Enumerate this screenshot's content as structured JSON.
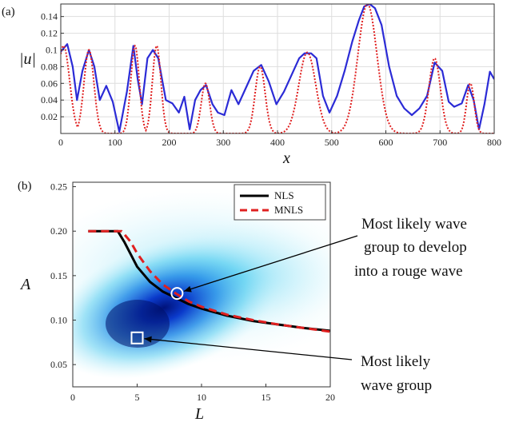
{
  "panel_a": {
    "label": "(a)",
    "chart_data": {
      "type": "line",
      "xlabel": "x",
      "ylabel": "|u|",
      "xlim": [
        0,
        800
      ],
      "ylim": [
        0,
        0.155
      ],
      "x_ticks": [
        0,
        100,
        200,
        300,
        400,
        500,
        600,
        700,
        800
      ],
      "y_ticks": [
        0.02,
        0.04,
        0.06,
        0.08,
        0.1,
        0.12,
        0.14
      ],
      "y_tick_labels": [
        "0.02",
        "0.04",
        "0.06",
        "0.08",
        "0.1",
        "0.12",
        "0.14"
      ],
      "grid": true,
      "series": [
        {
          "color": "#2b2bd6",
          "style": "solid",
          "x": [
            0,
            12,
            22,
            30,
            40,
            52,
            62,
            72,
            84,
            96,
            108,
            122,
            134,
            142,
            150,
            160,
            170,
            180,
            194,
            206,
            218,
            228,
            238,
            248,
            258,
            268,
            280,
            290,
            302,
            315,
            328,
            342,
            356,
            370,
            384,
            398,
            412,
            426,
            440,
            450,
            462,
            472,
            484,
            496,
            510,
            524,
            538,
            550,
            560,
            570,
            580,
            592,
            606,
            620,
            634,
            648,
            662,
            676,
            690,
            704,
            716,
            726,
            740,
            752,
            762,
            772,
            782,
            792,
            800
          ],
          "y": [
            0.098,
            0.107,
            0.08,
            0.04,
            0.075,
            0.1,
            0.08,
            0.04,
            0.057,
            0.038,
            0.002,
            0.05,
            0.105,
            0.065,
            0.035,
            0.09,
            0.1,
            0.09,
            0.04,
            0.036,
            0.025,
            0.044,
            0.005,
            0.04,
            0.052,
            0.058,
            0.035,
            0.025,
            0.022,
            0.052,
            0.035,
            0.055,
            0.075,
            0.082,
            0.062,
            0.035,
            0.05,
            0.07,
            0.09,
            0.096,
            0.096,
            0.09,
            0.045,
            0.025,
            0.045,
            0.075,
            0.11,
            0.135,
            0.152,
            0.155,
            0.15,
            0.13,
            0.08,
            0.045,
            0.03,
            0.022,
            0.03,
            0.045,
            0.085,
            0.075,
            0.038,
            0.032,
            0.036,
            0.058,
            0.04,
            0.005,
            0.035,
            0.074,
            0.065
          ]
        },
        {
          "color": "#e02020",
          "style": "dotted",
          "peaks": [
            {
              "center": 5,
              "amp": 0.105,
              "width": 16
            },
            {
              "center": 52,
              "amp": 0.1,
              "width": 13
            },
            {
              "center": 137,
              "amp": 0.105,
              "width": 11
            },
            {
              "center": 177,
              "amp": 0.105,
              "width": 11
            },
            {
              "center": 267,
              "amp": 0.06,
              "width": 11
            },
            {
              "center": 368,
              "amp": 0.08,
              "width": 13
            },
            {
              "center": 455,
              "amp": 0.097,
              "width": 22
            },
            {
              "center": 566,
              "amp": 0.155,
              "width": 25
            },
            {
              "center": 690,
              "amp": 0.09,
              "width": 15
            },
            {
              "center": 756,
              "amp": 0.06,
              "width": 10
            }
          ]
        }
      ]
    }
  },
  "panel_b": {
    "label": "(b)",
    "chart_data": {
      "type": "line",
      "xlabel": "L",
      "ylabel": "A",
      "xlim": [
        0,
        20
      ],
      "ylim": [
        0.025,
        0.255
      ],
      "x_ticks": [
        0,
        5,
        10,
        15,
        20
      ],
      "y_ticks": [
        0.05,
        0.1,
        0.15,
        0.2,
        0.25
      ],
      "y_tick_labels": [
        "0.05",
        "0.10",
        "0.15",
        "0.20",
        "0.25"
      ],
      "legend_position": "top-right",
      "background": "density heatmap (cyan to dark blue)",
      "series": [
        {
          "name": "NLS",
          "color": "#000000",
          "style": "solid",
          "x": [
            1.2,
            2.0,
            3.0,
            3.5,
            4.0,
            5.0,
            6.0,
            7.0,
            8.0,
            9.0,
            10.0,
            12.0,
            14.0,
            16.0,
            18.0,
            20.0
          ],
          "y": [
            0.2,
            0.2,
            0.2,
            0.2,
            0.188,
            0.16,
            0.143,
            0.132,
            0.125,
            0.118,
            0.113,
            0.105,
            0.099,
            0.095,
            0.091,
            0.088
          ]
        },
        {
          "name": "MNLS",
          "color": "#e02020",
          "style": "dashed",
          "x": [
            1.2,
            2.0,
            3.0,
            3.8,
            4.5,
            5.0,
            6.0,
            7.0,
            8.0,
            9.0,
            10.0,
            12.0,
            14.0,
            16.0,
            18.0,
            20.0
          ],
          "y": [
            0.2,
            0.2,
            0.2,
            0.2,
            0.188,
            0.175,
            0.155,
            0.14,
            0.13,
            0.121,
            0.115,
            0.106,
            0.1,
            0.095,
            0.091,
            0.087
          ]
        }
      ],
      "markers": [
        {
          "shape": "circle",
          "x": 8.1,
          "y": 0.13
        },
        {
          "shape": "square",
          "x": 5.0,
          "y": 0.08
        }
      ],
      "annotations": [
        {
          "lines": [
            "Most likely wave",
            "group to develop",
            "into a rouge wave"
          ],
          "target": {
            "x": 8.1,
            "y": 0.13
          }
        },
        {
          "lines": [
            "Most likely",
            "wave group"
          ],
          "target": {
            "x": 5.0,
            "y": 0.08
          }
        }
      ]
    }
  }
}
